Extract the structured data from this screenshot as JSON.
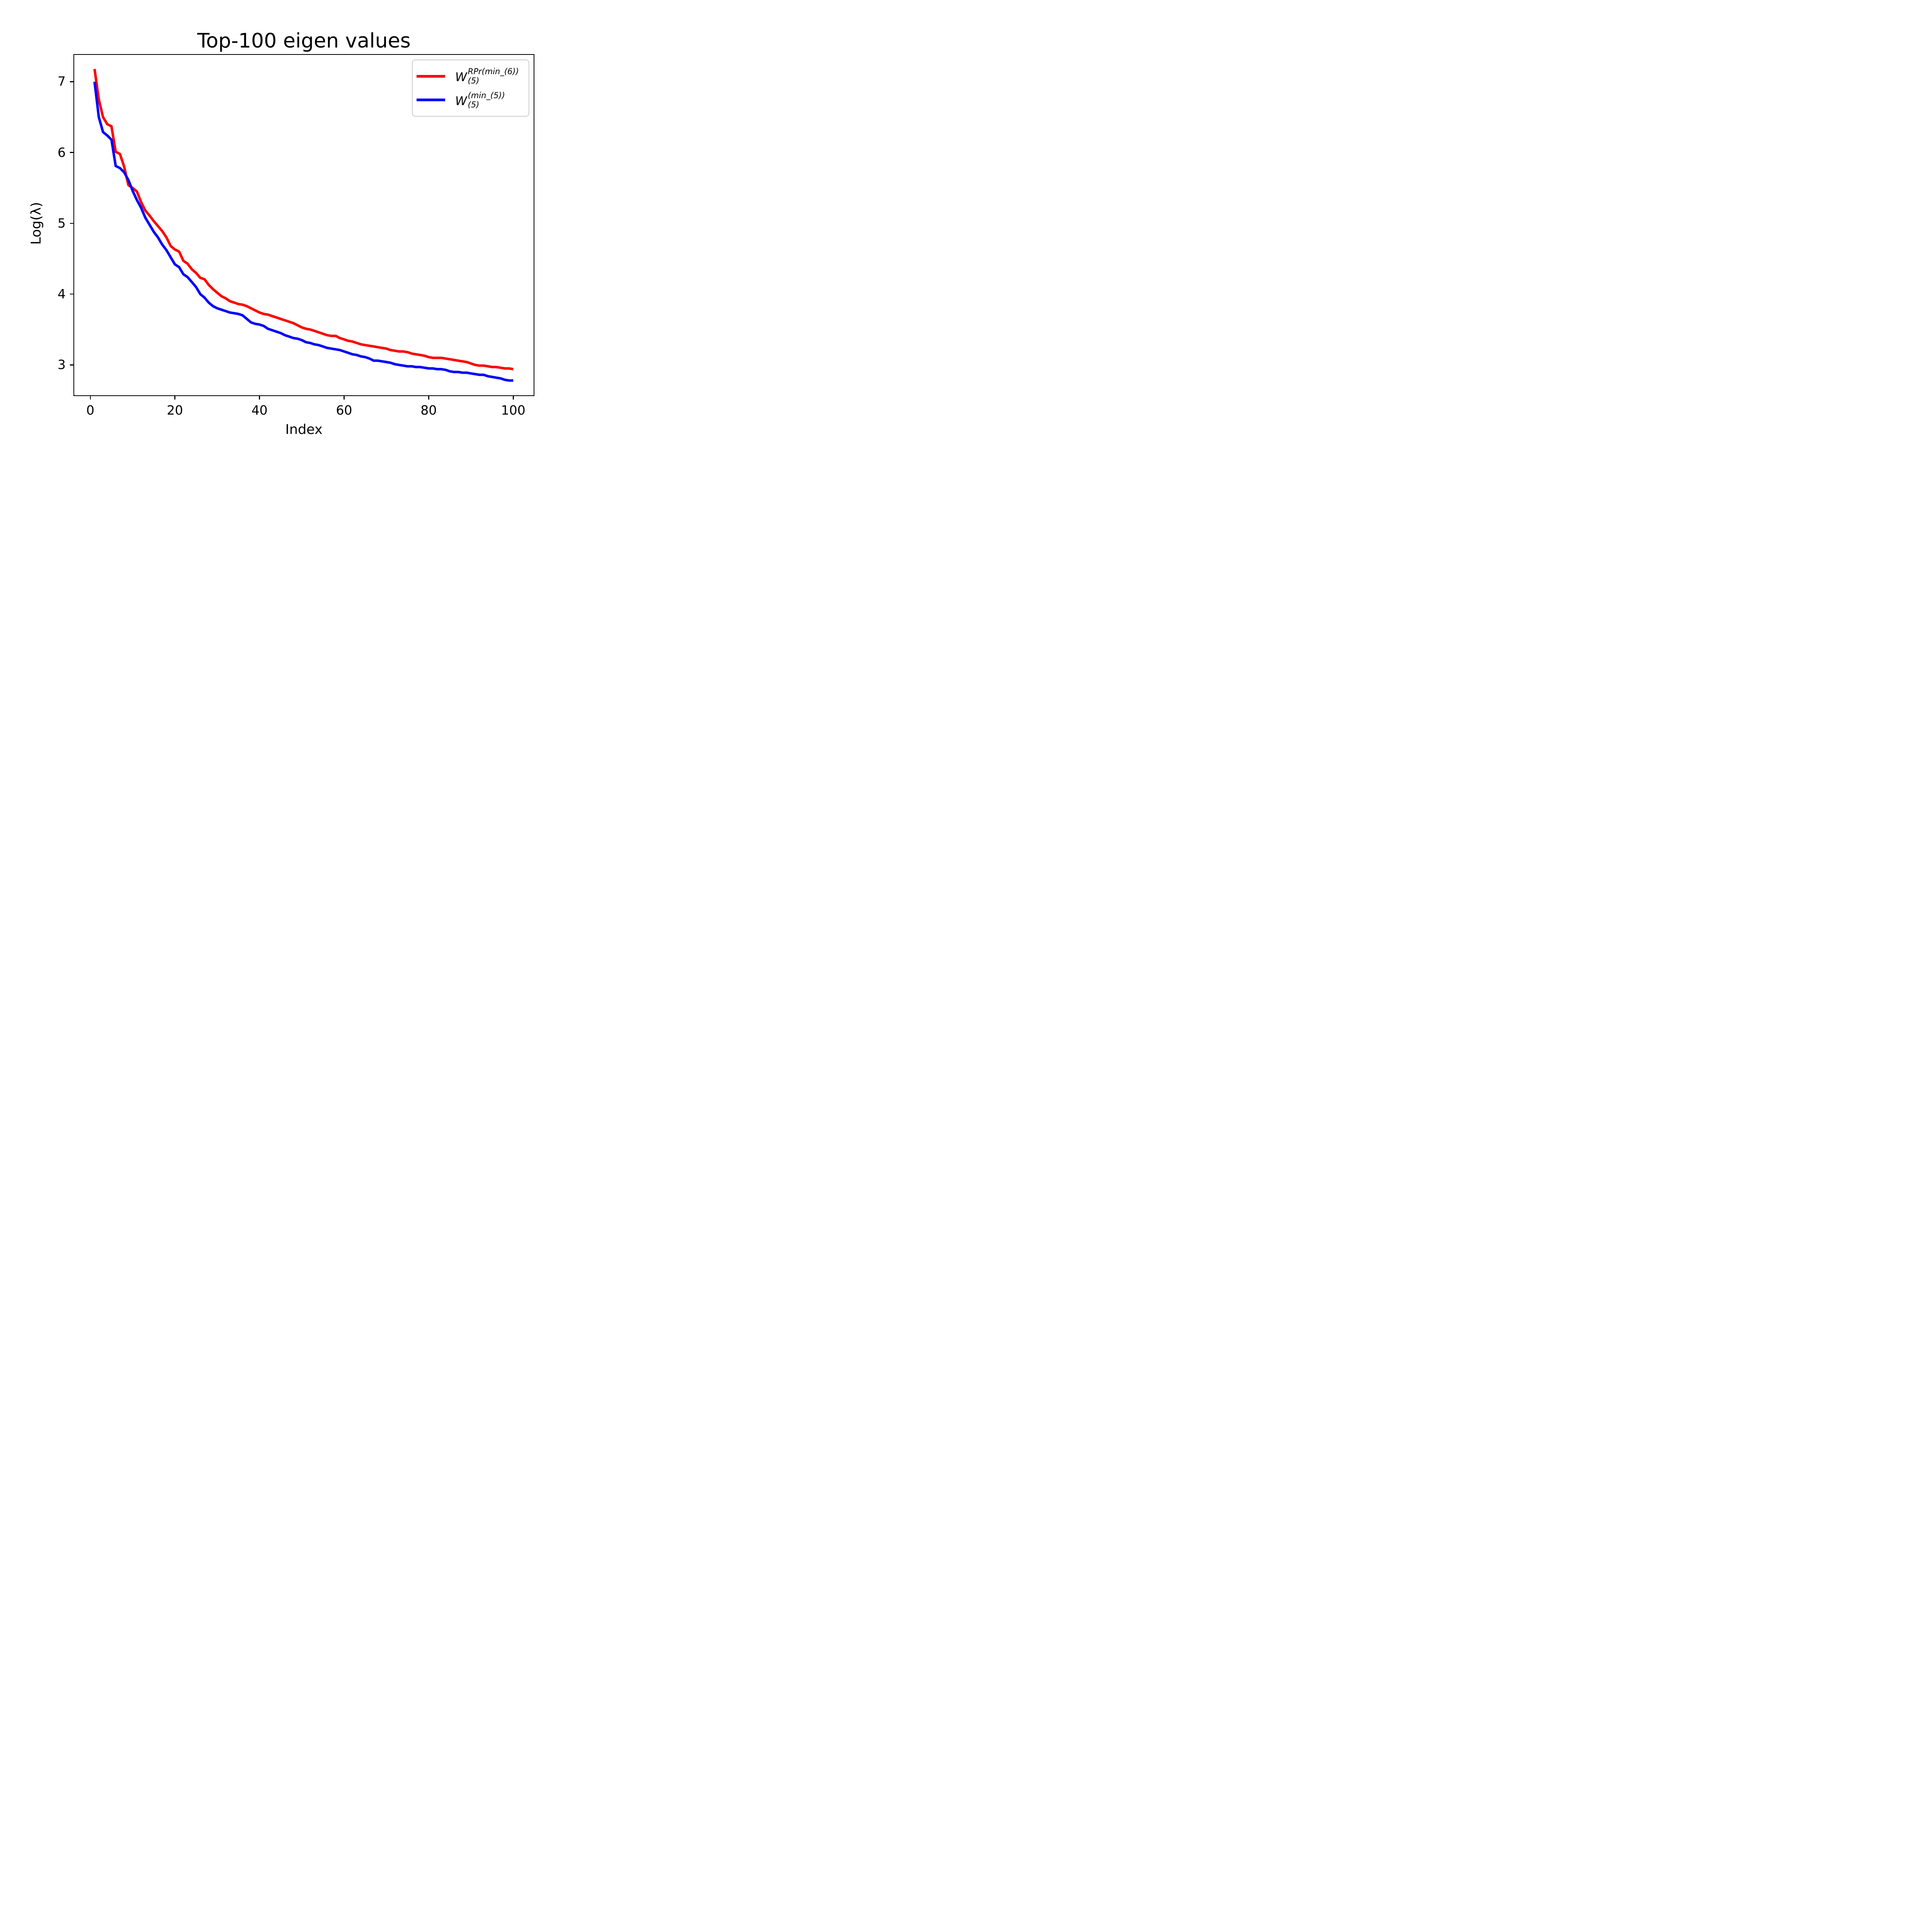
{
  "title": "Top-100 eigen values",
  "axes": {
    "xlabel": "Index",
    "ylabel": "Log(λ)",
    "x_ticks": [
      0,
      20,
      40,
      60,
      80,
      100
    ],
    "y_ticks": [
      7,
      6,
      5,
      4,
      3
    ],
    "xlim": [
      -4,
      105
    ],
    "ylim": [
      2.56,
      7.39
    ]
  },
  "legend": {
    "entries": [
      {
        "base": "W",
        "sup": "RPr(min_(6))",
        "sub": "(5)",
        "color": "#ff0000"
      },
      {
        "base": "W",
        "sup": "(min_(5))",
        "sub": "(5)",
        "color": "#0000ff"
      }
    ]
  },
  "chart_data": {
    "type": "line",
    "title": "Top-100 eigen values",
    "xlabel": "Index",
    "ylabel": "Log(λ)",
    "xlim": [
      -4,
      105
    ],
    "ylim": [
      2.56,
      7.39
    ],
    "grid": false,
    "legend_position": "upper right",
    "x": [
      1,
      2,
      3,
      4,
      5,
      6,
      7,
      8,
      9,
      10,
      11,
      12,
      13,
      14,
      15,
      16,
      17,
      18,
      19,
      20,
      21,
      22,
      23,
      24,
      25,
      26,
      27,
      28,
      29,
      30,
      31,
      32,
      33,
      34,
      35,
      36,
      37,
      38,
      39,
      40,
      41,
      42,
      43,
      44,
      45,
      46,
      47,
      48,
      49,
      50,
      51,
      52,
      53,
      54,
      55,
      56,
      57,
      58,
      59,
      60,
      61,
      62,
      63,
      64,
      65,
      66,
      67,
      68,
      69,
      70,
      71,
      72,
      73,
      74,
      75,
      76,
      77,
      78,
      79,
      80,
      81,
      82,
      83,
      84,
      85,
      86,
      87,
      88,
      89,
      90,
      91,
      92,
      93,
      94,
      95,
      96,
      97,
      98,
      99,
      100
    ],
    "series": [
      {
        "name": "W_(5)^RPr(min_(6))",
        "color": "#ff0000",
        "values": [
          7.18,
          6.75,
          6.5,
          6.4,
          6.37,
          6.01,
          5.98,
          5.8,
          5.54,
          5.5,
          5.45,
          5.3,
          5.18,
          5.11,
          5.03,
          4.96,
          4.89,
          4.8,
          4.68,
          4.63,
          4.6,
          4.47,
          4.43,
          4.35,
          4.3,
          4.23,
          4.21,
          4.13,
          4.07,
          4.02,
          3.97,
          3.94,
          3.9,
          3.88,
          3.86,
          3.85,
          3.83,
          3.8,
          3.77,
          3.74,
          3.72,
          3.71,
          3.69,
          3.67,
          3.65,
          3.63,
          3.61,
          3.59,
          3.56,
          3.53,
          3.51,
          3.5,
          3.48,
          3.46,
          3.44,
          3.42,
          3.41,
          3.41,
          3.38,
          3.36,
          3.34,
          3.33,
          3.31,
          3.29,
          3.28,
          3.27,
          3.26,
          3.25,
          3.24,
          3.23,
          3.21,
          3.2,
          3.19,
          3.19,
          3.18,
          3.16,
          3.15,
          3.14,
          3.13,
          3.11,
          3.1,
          3.1,
          3.1,
          3.09,
          3.08,
          3.07,
          3.06,
          3.05,
          3.04,
          3.02,
          3.0,
          2.99,
          2.99,
          2.98,
          2.97,
          2.97,
          2.96,
          2.95,
          2.95,
          2.94
        ]
      },
      {
        "name": "W_(5)^(min_(5))",
        "color": "#0000ff",
        "values": [
          7.0,
          6.5,
          6.29,
          6.24,
          6.18,
          5.81,
          5.78,
          5.72,
          5.61,
          5.46,
          5.33,
          5.22,
          5.08,
          4.98,
          4.88,
          4.8,
          4.7,
          4.62,
          4.52,
          4.42,
          4.38,
          4.28,
          4.24,
          4.17,
          4.1,
          4.0,
          3.95,
          3.88,
          3.83,
          3.8,
          3.78,
          3.76,
          3.74,
          3.73,
          3.72,
          3.7,
          3.65,
          3.6,
          3.58,
          3.57,
          3.55,
          3.51,
          3.49,
          3.47,
          3.45,
          3.42,
          3.4,
          3.38,
          3.37,
          3.35,
          3.32,
          3.31,
          3.29,
          3.28,
          3.26,
          3.24,
          3.23,
          3.22,
          3.21,
          3.19,
          3.17,
          3.15,
          3.14,
          3.12,
          3.11,
          3.09,
          3.06,
          3.06,
          3.05,
          3.04,
          3.03,
          3.01,
          3.0,
          2.99,
          2.98,
          2.98,
          2.97,
          2.97,
          2.96,
          2.95,
          2.95,
          2.94,
          2.94,
          2.93,
          2.91,
          2.9,
          2.9,
          2.89,
          2.89,
          2.88,
          2.87,
          2.86,
          2.86,
          2.84,
          2.83,
          2.82,
          2.81,
          2.79,
          2.78,
          2.78
        ]
      }
    ]
  }
}
